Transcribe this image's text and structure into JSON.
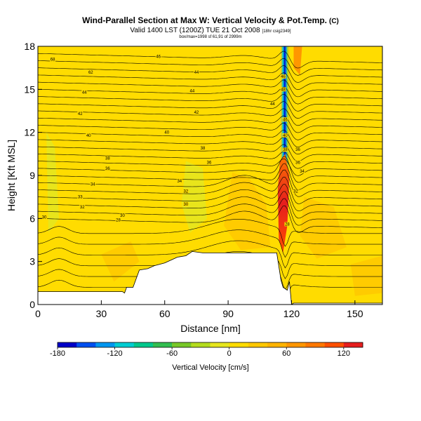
{
  "chart_data": {
    "type": "heatmap",
    "title": "Wind-Parallel Section at Max W: Vertical Velocity & Pot.Temp.",
    "title_mark": "(C)",
    "subtitle": "Valid 1400 LST (1200Z) TUE 21 Oct 2008",
    "subtitle_note": "[18hr csig2349]",
    "info_line": "box/max=1998 sf 61,91 of 2999m",
    "xlabel": "Distance [nm]",
    "ylabel": "Height [Kft MSL]",
    "xlim": [
      0,
      163
    ],
    "ylim": [
      0,
      18
    ],
    "xticks": [
      0,
      30,
      60,
      90,
      120,
      150
    ],
    "yticks": [
      0,
      3,
      6,
      9,
      12,
      15,
      18
    ],
    "terrain": [
      [
        0,
        0.9
      ],
      [
        40,
        0.9
      ],
      [
        41,
        0.8
      ],
      [
        42,
        1.2
      ],
      [
        45,
        1.2
      ],
      [
        46,
        1.6
      ],
      [
        47,
        2.0
      ],
      [
        48,
        2.4
      ],
      [
        52,
        2.5
      ],
      [
        55,
        2.7
      ],
      [
        60,
        2.9
      ],
      [
        63,
        3.1
      ],
      [
        66,
        3.3
      ],
      [
        70,
        3.4
      ],
      [
        73,
        3.7
      ],
      [
        78,
        3.6
      ],
      [
        100,
        3.6
      ],
      [
        113,
        3.6
      ],
      [
        115,
        1.7
      ],
      [
        116,
        1.2
      ],
      [
        118,
        1.0
      ],
      [
        119,
        1.6
      ],
      [
        120,
        0
      ],
      [
        121,
        0.1
      ],
      [
        163,
        0.1
      ]
    ],
    "plume": {
      "center_x": 117,
      "width": 4,
      "top": 18,
      "max_updraft": 130,
      "min_downdraft": -180
    },
    "theta_contour_labels": [
      {
        "x": 7,
        "y": 17.1,
        "text": "68"
      },
      {
        "x": 25,
        "y": 16.2,
        "text": "62"
      },
      {
        "x": 22,
        "y": 14.8,
        "text": "44"
      },
      {
        "x": 20,
        "y": 13.3,
        "text": "42"
      },
      {
        "x": 24,
        "y": 11.8,
        "text": "40"
      },
      {
        "x": 33,
        "y": 10.2,
        "text": "38"
      },
      {
        "x": 33,
        "y": 9.5,
        "text": "36"
      },
      {
        "x": 26,
        "y": 8.4,
        "text": "34"
      },
      {
        "x": 20,
        "y": 7.5,
        "text": "33"
      },
      {
        "x": 21,
        "y": 6.8,
        "text": "32"
      },
      {
        "x": 40,
        "y": 6.2,
        "text": "30"
      },
      {
        "x": 38,
        "y": 5.9,
        "text": "28"
      },
      {
        "x": 3,
        "y": 6.1,
        "text": "30"
      },
      {
        "x": 57,
        "y": 17.3,
        "text": "46"
      },
      {
        "x": 75,
        "y": 16.2,
        "text": "44"
      },
      {
        "x": 73,
        "y": 14.9,
        "text": "44"
      },
      {
        "x": 75,
        "y": 13.4,
        "text": "42"
      },
      {
        "x": 61,
        "y": 12.0,
        "text": "40"
      },
      {
        "x": 78,
        "y": 10.9,
        "text": "38"
      },
      {
        "x": 81,
        "y": 9.9,
        "text": "36"
      },
      {
        "x": 67,
        "y": 8.6,
        "text": "34"
      },
      {
        "x": 70,
        "y": 7.9,
        "text": "32"
      },
      {
        "x": 70,
        "y": 7.0,
        "text": "30"
      },
      {
        "x": 111,
        "y": 14.0,
        "text": "44"
      },
      {
        "x": 116,
        "y": 15.9,
        "text": "46"
      },
      {
        "x": 116,
        "y": 15.0,
        "text": "48"
      },
      {
        "x": 117,
        "y": 12.9,
        "text": "46"
      },
      {
        "x": 117,
        "y": 11.8,
        "text": "40"
      },
      {
        "x": 117,
        "y": 10.8,
        "text": "38"
      },
      {
        "x": 123,
        "y": 10.8,
        "text": "36"
      },
      {
        "x": 123,
        "y": 9.9,
        "text": "36"
      },
      {
        "x": 125,
        "y": 9.3,
        "text": "34"
      },
      {
        "x": 122,
        "y": 7.9,
        "text": "32"
      },
      {
        "x": 118,
        "y": 5.6,
        "text": "28"
      }
    ],
    "colorbar": {
      "label": "Vertical Velocity [cm/s]",
      "min": -180,
      "max": 140,
      "tick_values": [
        -180,
        -120,
        -60,
        0,
        60,
        120
      ],
      "tick_labels": [
        "-180",
        "-120",
        "-60",
        "0",
        "60",
        "120"
      ],
      "colors": [
        "#0000c8",
        "#0050f0",
        "#0096f0",
        "#00cdd2",
        "#00c88c",
        "#32be50",
        "#78c828",
        "#b4dc1e",
        "#e6e61e",
        "#ffdc00",
        "#ffc800",
        "#ffb400",
        "#ff9600",
        "#ff7800",
        "#ff5000",
        "#e61e1e"
      ]
    }
  }
}
